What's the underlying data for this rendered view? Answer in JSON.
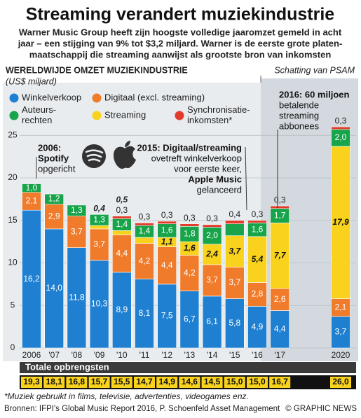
{
  "chart_data": {
    "type": "stacked-bar",
    "title": "Streaming verandert muziekindustrie",
    "subtitle": [
      "Warner Music Group heeft zijn hoogste volledige jaaromzet gemeld in acht",
      "jaar – een stijging van 9% tot $3,2 miljard. Warner is de eerste grote platen-",
      "maatschappij die streaming aanwijst als grootste bron van inkomsten"
    ],
    "axis_title": "WERELDWIJDE OMZET MUZIEKINDUSTRIE",
    "axis_unit": "(US$ miljard)",
    "estimate_label": "Schatting van PSAM",
    "categories": [
      "2006",
      "'07",
      "'08",
      "'09",
      "'10",
      "'11",
      "'12",
      "'13",
      "'14",
      "'15",
      "'16",
      "'17",
      "2020"
    ],
    "series": [
      {
        "name": "Winkelverkoop",
        "color": "#1f80d2",
        "values": [
          16.2,
          14.0,
          11.8,
          10.3,
          8.9,
          8.1,
          7.5,
          6.7,
          6.1,
          5.8,
          4.9,
          4.4,
          3.7
        ],
        "value_labels": [
          "16,2",
          "14,0",
          "11,8",
          "10,3",
          "8,9",
          "8,1",
          "7,5",
          "6,7",
          "6,1",
          "5,8",
          "4,9",
          "4,4",
          "3,7"
        ]
      },
      {
        "name": "Digitaal (excl. streaming)",
        "color": "#f07b2a",
        "values": [
          2.1,
          2.9,
          3.7,
          3.7,
          4.4,
          4.2,
          4.4,
          4.2,
          3.7,
          3.7,
          2.8,
          2.6,
          2.1
        ],
        "value_labels": [
          "2,1",
          "2,9",
          "3,7",
          "3,7",
          "4,4",
          "4,2",
          "4,4",
          "4,2",
          "3,7",
          "3,7",
          "2,8",
          "2,6",
          "2,1"
        ]
      },
      {
        "name": "Streaming",
        "color": "#f8d21c",
        "values": [
          null,
          null,
          null,
          0.4,
          0.5,
          0.7,
          1.1,
          1.6,
          2.4,
          3.7,
          5.4,
          7.7,
          17.9
        ],
        "value_labels": [
          null,
          null,
          null,
          "0,4",
          "0,5",
          null,
          "1,1",
          "1,6",
          "2,4",
          "3,7",
          "5,4",
          "7,7",
          "17,9"
        ]
      },
      {
        "name": "Auteurs-rechten",
        "color": "#17a44a",
        "values": [
          1.0,
          1.2,
          1.3,
          1.3,
          1.4,
          1.4,
          1.6,
          1.8,
          2.0,
          1.4,
          1.6,
          1.7,
          2.0
        ],
        "value_labels": [
          "1,0",
          "1,2",
          "1,3",
          "1,3",
          "1,4",
          "1,4",
          "1,6",
          "1,8",
          "2,0",
          null,
          "1,6",
          "1,7",
          "2,0"
        ]
      },
      {
        "name": "Synchronisatie-inkomsten*",
        "color": "#e23b2b",
        "values": [
          null,
          null,
          null,
          null,
          0.3,
          0.3,
          0.3,
          0.3,
          0.3,
          0.4,
          0.3,
          0.3,
          0.3
        ],
        "value_labels": [
          null,
          null,
          null,
          null,
          "0,3",
          "0,3",
          "0,3",
          "0,3",
          "0,3",
          "0,4",
          "0,3",
          "0,3",
          "0,3"
        ]
      }
    ],
    "ylim": [
      0,
      27
    ],
    "yticks": [
      0,
      5,
      10,
      15,
      20,
      25
    ],
    "grid": true,
    "totals_title": "Totale opbrengsten",
    "totals": [
      {
        "value": 19.3,
        "label": "19,3"
      },
      {
        "value": 18.1,
        "label": "18,1"
      },
      {
        "value": 16.8,
        "label": "16,8"
      },
      {
        "value": 15.7,
        "label": "15,7"
      },
      {
        "value": 15.5,
        "label": "15,5"
      },
      {
        "value": 14.7,
        "label": "14,7"
      },
      {
        "value": 14.9,
        "label": "14,9"
      },
      {
        "value": 14.6,
        "label": "14,6"
      },
      {
        "value": 14.5,
        "label": "14,5"
      },
      {
        "value": 15.0,
        "label": "15,0"
      },
      {
        "value": 15.0,
        "label": "15,0"
      },
      {
        "value": 16.7,
        "label": "16,7"
      },
      {
        "value": 26.0,
        "label": "26,0"
      }
    ],
    "annotations": [
      [
        "2006:",
        "Spotify",
        "opgericht"
      ],
      [
        "2015: Digitaal/streaming",
        "ovetreft winkelverkoop",
        "voor eerste keer,",
        "Apple Music",
        "gelanceerd"
      ],
      [
        "2016: 60 miljoen",
        "betalende",
        "streaming",
        "abbonees"
      ]
    ],
    "footnote": "*Muziek gebruikt in films, televisie, advertenties, videogames enz.",
    "source": "Bronnen: IFPI's Global Music Report 2016, P. Schoenfeld Asset Management",
    "credit": "© GRAPHIC NEWS"
  }
}
